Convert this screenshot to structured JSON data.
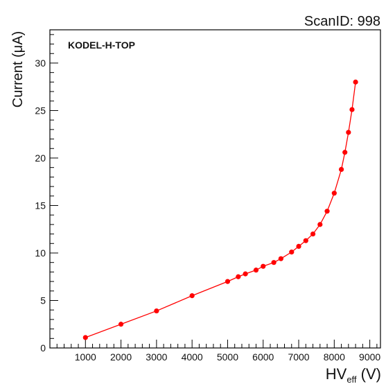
{
  "header": {
    "scan_id": "ScanID: 998"
  },
  "chart_data": {
    "type": "line",
    "title": "",
    "annotation": "KODEL-H-TOP",
    "xlabel": "HV",
    "xlabel_subscript": "eff",
    "xlabel_unit": " (V)",
    "ylabel": "Current (μA)",
    "xlim": [
      0,
      9300
    ],
    "ylim": [
      0,
      33.5
    ],
    "x_ticks": [
      1000,
      2000,
      3000,
      4000,
      5000,
      6000,
      7000,
      8000,
      9000
    ],
    "y_ticks": [
      0,
      5,
      10,
      15,
      20,
      25,
      30
    ],
    "grid": false,
    "colors": {
      "series": "#ff0000",
      "axis": "#000000"
    },
    "series": [
      {
        "x": [
          1000,
          2000,
          3000,
          4000,
          5000,
          5300,
          5500,
          5800,
          6000,
          6300,
          6500,
          6800,
          7000,
          7200,
          7400,
          7600,
          7800,
          8000,
          8200,
          8300,
          8400,
          8500,
          8600
        ],
        "y": [
          1.1,
          2.5,
          3.9,
          5.5,
          7.0,
          7.5,
          7.8,
          8.2,
          8.6,
          9.0,
          9.4,
          10.1,
          10.7,
          11.3,
          12.0,
          13.0,
          14.4,
          16.3,
          18.8,
          20.6,
          22.7,
          25.1,
          28.0
        ]
      }
    ]
  }
}
